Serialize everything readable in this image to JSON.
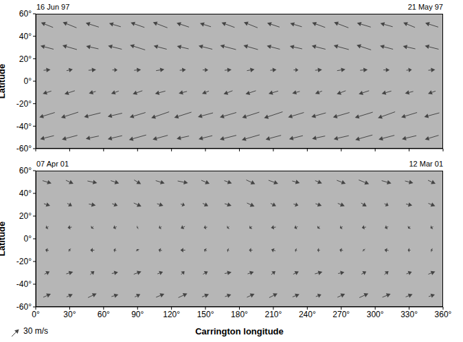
{
  "chart_data": [
    {
      "type": "vector",
      "annotations": [
        "16 Jun 97",
        "21 May 97"
      ],
      "y_label": "Latitude",
      "marker": "arrow",
      "tick_labels": "y",
      "color": "#454545",
      "xlim": [
        0,
        360
      ],
      "xticks": [
        {
          "value": 0,
          "label": "0°"
        },
        {
          "value": 30,
          "label": "30°"
        },
        {
          "value": 60,
          "label": "60°"
        },
        {
          "value": 90,
          "label": "90°"
        },
        {
          "value": 120,
          "label": "120°"
        },
        {
          "value": 150,
          "label": "150°"
        },
        {
          "value": 180,
          "label": "180°"
        },
        {
          "value": 210,
          "label": "210°"
        },
        {
          "value": 240,
          "label": "240°"
        },
        {
          "value": 270,
          "label": "270°"
        },
        {
          "value": 300,
          "label": "300°"
        },
        {
          "value": 330,
          "label": "330°"
        },
        {
          "value": 360,
          "label": "360°"
        }
      ],
      "ylim": [
        -60,
        60
      ],
      "yticks": [
        {
          "value": -60,
          "label": "-60°"
        },
        {
          "value": -40,
          "label": "-40°"
        },
        {
          "value": -20,
          "label": "-20°"
        },
        {
          "value": 0,
          "label": "0°"
        },
        {
          "value": 20,
          "label": "20°"
        },
        {
          "value": 40,
          "label": "40°"
        },
        {
          "value": 60,
          "label": "60°"
        }
      ],
      "x": [
        10,
        30,
        50,
        70,
        90,
        110,
        130,
        150,
        170,
        190,
        210,
        230,
        250,
        270,
        290,
        310,
        330,
        350
      ],
      "y": [
        -50,
        -30,
        -10,
        10,
        30,
        50
      ],
      "u": [
        [
          -40,
          -45,
          -38,
          -42,
          -50,
          -44,
          -36,
          -40,
          -48,
          -52,
          -45,
          -40,
          -38,
          -44,
          -50,
          -46,
          -42,
          -40
        ],
        [
          -45,
          -50,
          -48,
          -42,
          -46,
          -52,
          -50,
          -44,
          -48,
          -50,
          -54,
          -46,
          -42,
          -48,
          -52,
          -50,
          -46,
          -44
        ],
        [
          -25,
          -30,
          -20,
          -22,
          -28,
          -30,
          -24,
          -20,
          -26,
          -30,
          -28,
          -22,
          -20,
          -26,
          -30,
          -28,
          -24,
          -22
        ],
        [
          20,
          18,
          22,
          15,
          20,
          24,
          18,
          16,
          20,
          22,
          18,
          14,
          20,
          24,
          22,
          18,
          16,
          20
        ],
        [
          -38,
          -42,
          -36,
          -40,
          -44,
          -38,
          -34,
          -40,
          -46,
          -42,
          -38,
          -36,
          -40,
          -44,
          -42,
          -38,
          -36,
          -40
        ],
        [
          -35,
          -40,
          -38,
          -34,
          -40,
          -42,
          -36,
          -32,
          -38,
          -40,
          -36,
          -34,
          -38,
          -42,
          -40,
          -36,
          -34,
          -38
        ]
      ],
      "v": [
        [
          -10,
          -12,
          -8,
          -10,
          -14,
          -12,
          -8,
          -10,
          -12,
          -15,
          -12,
          -10,
          -8,
          -10,
          -14,
          -12,
          -10,
          -12
        ],
        [
          -14,
          -16,
          -12,
          -10,
          -14,
          -18,
          -16,
          -12,
          -14,
          -16,
          -18,
          -14,
          -12,
          -14,
          -16,
          -18,
          -14,
          -12
        ],
        [
          -8,
          -10,
          -6,
          -8,
          -10,
          -8,
          -6,
          -8,
          -10,
          -10,
          -8,
          -6,
          -8,
          -10,
          -10,
          -8,
          -6,
          -8
        ],
        [
          2,
          4,
          2,
          0,
          2,
          4,
          2,
          0,
          2,
          4,
          2,
          0,
          2,
          4,
          2,
          0,
          2,
          2
        ],
        [
          10,
          12,
          8,
          10,
          14,
          10,
          8,
          10,
          12,
          12,
          10,
          8,
          10,
          12,
          14,
          10,
          8,
          10
        ],
        [
          14,
          16,
          12,
          10,
          14,
          16,
          12,
          10,
          14,
          16,
          12,
          10,
          14,
          16,
          12,
          10,
          14,
          12
        ]
      ]
    },
    {
      "type": "vector",
      "annotations": [
        "07 Apr 01",
        "12 Mar 01"
      ],
      "y_label": "Latitude",
      "x_label": "Carrington longitude",
      "marker": "arrow",
      "color": "#454545",
      "reference_vector": {
        "value": 30,
        "label": "30 m/s"
      },
      "xlim": [
        0,
        360
      ],
      "xticks": [
        {
          "value": 0,
          "label": "0°"
        },
        {
          "value": 30,
          "label": "30°"
        },
        {
          "value": 60,
          "label": "60°"
        },
        {
          "value": 90,
          "label": "90°"
        },
        {
          "value": 120,
          "label": "120°"
        },
        {
          "value": 150,
          "label": "150°"
        },
        {
          "value": 180,
          "label": "180°"
        },
        {
          "value": 210,
          "label": "210°"
        },
        {
          "value": 240,
          "label": "240°"
        },
        {
          "value": 270,
          "label": "270°"
        },
        {
          "value": 300,
          "label": "300°"
        },
        {
          "value": 330,
          "label": "330°"
        },
        {
          "value": 360,
          "label": "360°"
        }
      ],
      "ylim": [
        -60,
        60
      ],
      "yticks": [
        {
          "value": -60,
          "label": "-60°"
        },
        {
          "value": -40,
          "label": "-40°"
        },
        {
          "value": -20,
          "label": "-20°"
        },
        {
          "value": 0,
          "label": "0°"
        },
        {
          "value": 20,
          "label": "20°"
        },
        {
          "value": 40,
          "label": "40°"
        },
        {
          "value": 60,
          "label": "60°"
        }
      ],
      "x": [
        10,
        30,
        50,
        70,
        90,
        110,
        130,
        150,
        170,
        190,
        210,
        230,
        250,
        270,
        290,
        310,
        330,
        350
      ],
      "y": [
        -50,
        -30,
        -10,
        10,
        30,
        50
      ],
      "u": [
        [
          22,
          18,
          25,
          20,
          16,
          24,
          26,
          20,
          18,
          22,
          24,
          20,
          16,
          22,
          26,
          24,
          20,
          18
        ],
        [
          15,
          20,
          12,
          18,
          22,
          16,
          10,
          14,
          20,
          18,
          12,
          16,
          22,
          18,
          14,
          12,
          16,
          20
        ],
        [
          -10,
          -6,
          -12,
          -8,
          -4,
          -10,
          -14,
          -8,
          -6,
          -10,
          -12,
          -6,
          -8,
          -10,
          -4,
          -12,
          -8,
          -6
        ],
        [
          -8,
          -12,
          -6,
          -10,
          -4,
          -8,
          -12,
          -10,
          -6,
          -8,
          -14,
          -10,
          -6,
          -8,
          -12,
          -10,
          -6,
          -8
        ],
        [
          18,
          14,
          20,
          16,
          22,
          18,
          12,
          16,
          20,
          22,
          16,
          14,
          18,
          20,
          16,
          12,
          18,
          20
        ],
        [
          26,
          22,
          28,
          24,
          20,
          26,
          30,
          24,
          22,
          26,
          28,
          22,
          20,
          26,
          30,
          28,
          24,
          22
        ]
      ],
      "v": [
        [
          10,
          8,
          12,
          6,
          8,
          10,
          12,
          8,
          6,
          10,
          12,
          8,
          6,
          10,
          12,
          10,
          8,
          6
        ],
        [
          8,
          6,
          10,
          4,
          8,
          6,
          10,
          8,
          4,
          6,
          10,
          8,
          6,
          4,
          8,
          10,
          6,
          8
        ],
        [
          2,
          4,
          0,
          2,
          6,
          2,
          0,
          4,
          2,
          0,
          4,
          2,
          0,
          2,
          4,
          2,
          0,
          2
        ],
        [
          -4,
          -2,
          -6,
          -4,
          -2,
          -4,
          -6,
          -2,
          -4,
          -6,
          -2,
          -4,
          -6,
          -4,
          -2,
          -4,
          -6,
          -4
        ],
        [
          -6,
          -8,
          -4,
          -6,
          -10,
          -6,
          -4,
          -8,
          -6,
          -10,
          -8,
          -4,
          -6,
          -8,
          -10,
          -6,
          -4,
          -8
        ],
        [
          -8,
          -10,
          -6,
          -8,
          -12,
          -8,
          -6,
          -10,
          -8,
          -12,
          -10,
          -6,
          -8,
          -10,
          -12,
          -8,
          -6,
          -10
        ]
      ]
    }
  ]
}
